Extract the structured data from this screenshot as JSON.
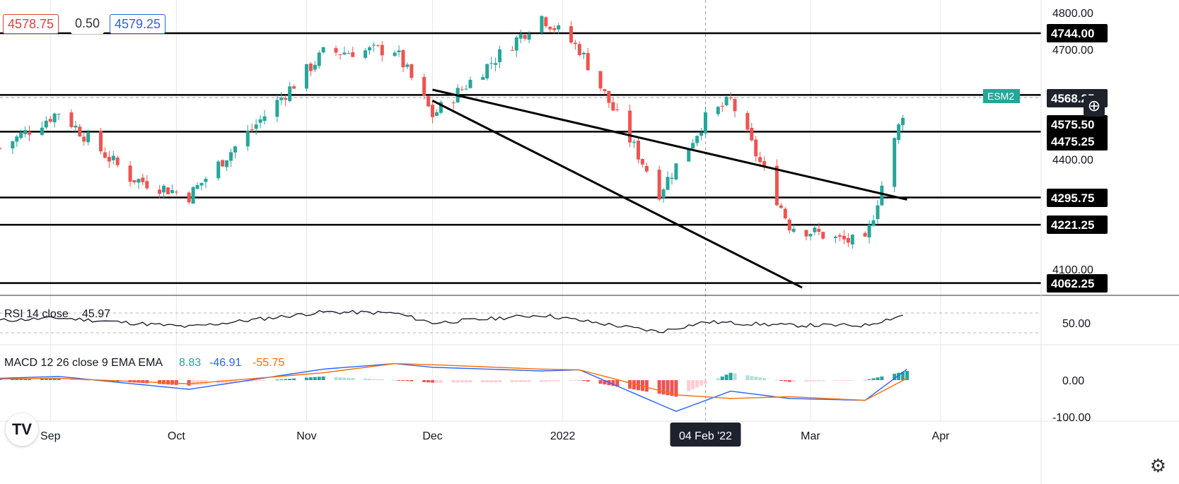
{
  "header": {
    "bid": "4578.75",
    "spread": "0.50",
    "ask": "4579.25"
  },
  "icons": {
    "logo": "tradingview-logo",
    "settings": "gear-icon",
    "crosshair": "crosshair-icon"
  },
  "colors": {
    "up": "#26a69a",
    "down": "#ef5350",
    "rsi": "#131722",
    "macd": "#2962ff",
    "signal": "#ff6d00",
    "hist_pos": "#26a69a",
    "hist_neg": "#ef5350",
    "hist_pos_light": "#b2dfdb",
    "hist_neg_light": "#ffcdd2",
    "symbol_tag": "#26a69a"
  },
  "chart_data": [
    {
      "type": "candlestick",
      "title": "",
      "y_axis_ticks": [
        "4800.00",
        "4700.00",
        "4400.00",
        "4100.00"
      ],
      "ylim": [
        4030,
        4820
      ],
      "x_axis_labels": [
        "Sep",
        "Oct",
        "Nov",
        "Dec",
        "2022",
        "Mar",
        "Apr"
      ],
      "crosshair_date": "04 Feb '22",
      "horizontal_levels": [
        4744.0,
        4575.5,
        4475.25,
        4295.75,
        4221.25,
        4062.25
      ],
      "price_labels": [
        "4744.00",
        "4568.25",
        "4575.50",
        "4475.25",
        "4295.75",
        "4221.25",
        "4062.25"
      ],
      "symbol_tag": "ESM2",
      "current_price": 4568.25,
      "trend_lines": [
        {
          "from": [
            "2021-12-01",
            4590
          ],
          "to": [
            "2022-03-24",
            4290
          ]
        },
        {
          "from": [
            "2021-12-01",
            4560
          ],
          "to": [
            "2022-02-27",
            4050
          ]
        }
      ],
      "key_points": [
        {
          "date": "2021-08-20",
          "close": 4430
        },
        {
          "date": "2021-09-03",
          "close": 4530
        },
        {
          "date": "2021-09-20",
          "close": 4350
        },
        {
          "date": "2021-10-04",
          "close": 4300
        },
        {
          "date": "2021-11-05",
          "close": 4690
        },
        {
          "date": "2021-11-22",
          "close": 4700
        },
        {
          "date": "2021-12-01",
          "close": 4520
        },
        {
          "date": "2021-12-27",
          "close": 4790
        },
        {
          "date": "2022-01-05",
          "close": 4700
        },
        {
          "date": "2022-01-24",
          "close": 4310
        },
        {
          "date": "2022-02-04",
          "close": 4510
        },
        {
          "date": "2022-02-10",
          "close": 4560
        },
        {
          "date": "2022-02-24",
          "close": 4220
        },
        {
          "date": "2022-03-08",
          "close": 4180
        },
        {
          "date": "2022-03-14",
          "close": 4170
        },
        {
          "date": "2022-03-24",
          "close": 4568
        }
      ]
    },
    {
      "type": "line",
      "title": "RSI 14 close",
      "last_value": "45.97",
      "y_axis_ticks": [
        "50.00"
      ],
      "ylim": [
        20,
        85
      ],
      "key_points": [
        {
          "date": "2021-08-20",
          "value": 55
        },
        {
          "date": "2021-09-03",
          "value": 60
        },
        {
          "date": "2021-10-04",
          "value": 42
        },
        {
          "date": "2021-11-05",
          "value": 72
        },
        {
          "date": "2021-11-22",
          "value": 70
        },
        {
          "date": "2021-12-01",
          "value": 50
        },
        {
          "date": "2021-12-27",
          "value": 66
        },
        {
          "date": "2022-01-24",
          "value": 32
        },
        {
          "date": "2022-02-04",
          "value": 52
        },
        {
          "date": "2022-02-24",
          "value": 45
        },
        {
          "date": "2022-03-14",
          "value": 45
        },
        {
          "date": "2022-03-24",
          "value": 68
        }
      ]
    },
    {
      "type": "line",
      "title": "MACD 12 26 close 9 EMA EMA",
      "values_shown": {
        "histogram": "8.83",
        "macd": "-46.91",
        "signal": "-55.75"
      },
      "y_axis_ticks": [
        "0.00",
        "-100.00"
      ],
      "ylim": [
        -110,
        70
      ],
      "series": [
        {
          "name": "MACD",
          "points": [
            [
              "2021-08-20",
              5
            ],
            [
              "2021-09-03",
              10
            ],
            [
              "2021-10-04",
              -25
            ],
            [
              "2021-11-05",
              30
            ],
            [
              "2021-11-22",
              45
            ],
            [
              "2021-12-01",
              35
            ],
            [
              "2021-12-27",
              25
            ],
            [
              "2022-01-05",
              28
            ],
            [
              "2022-01-28",
              -85
            ],
            [
              "2022-02-10",
              -30
            ],
            [
              "2022-02-24",
              -50
            ],
            [
              "2022-03-14",
              -55
            ],
            [
              "2022-03-24",
              30
            ]
          ]
        },
        {
          "name": "Signal",
          "points": [
            [
              "2021-08-20",
              3
            ],
            [
              "2021-09-03",
              5
            ],
            [
              "2021-10-04",
              -10
            ],
            [
              "2021-11-05",
              20
            ],
            [
              "2021-11-22",
              45
            ],
            [
              "2021-12-01",
              42
            ],
            [
              "2021-12-27",
              30
            ],
            [
              "2022-01-05",
              28
            ],
            [
              "2022-01-28",
              -40
            ],
            [
              "2022-02-10",
              -50
            ],
            [
              "2022-02-24",
              -45
            ],
            [
              "2022-03-14",
              -55
            ],
            [
              "2022-03-24",
              5
            ]
          ]
        }
      ]
    }
  ]
}
